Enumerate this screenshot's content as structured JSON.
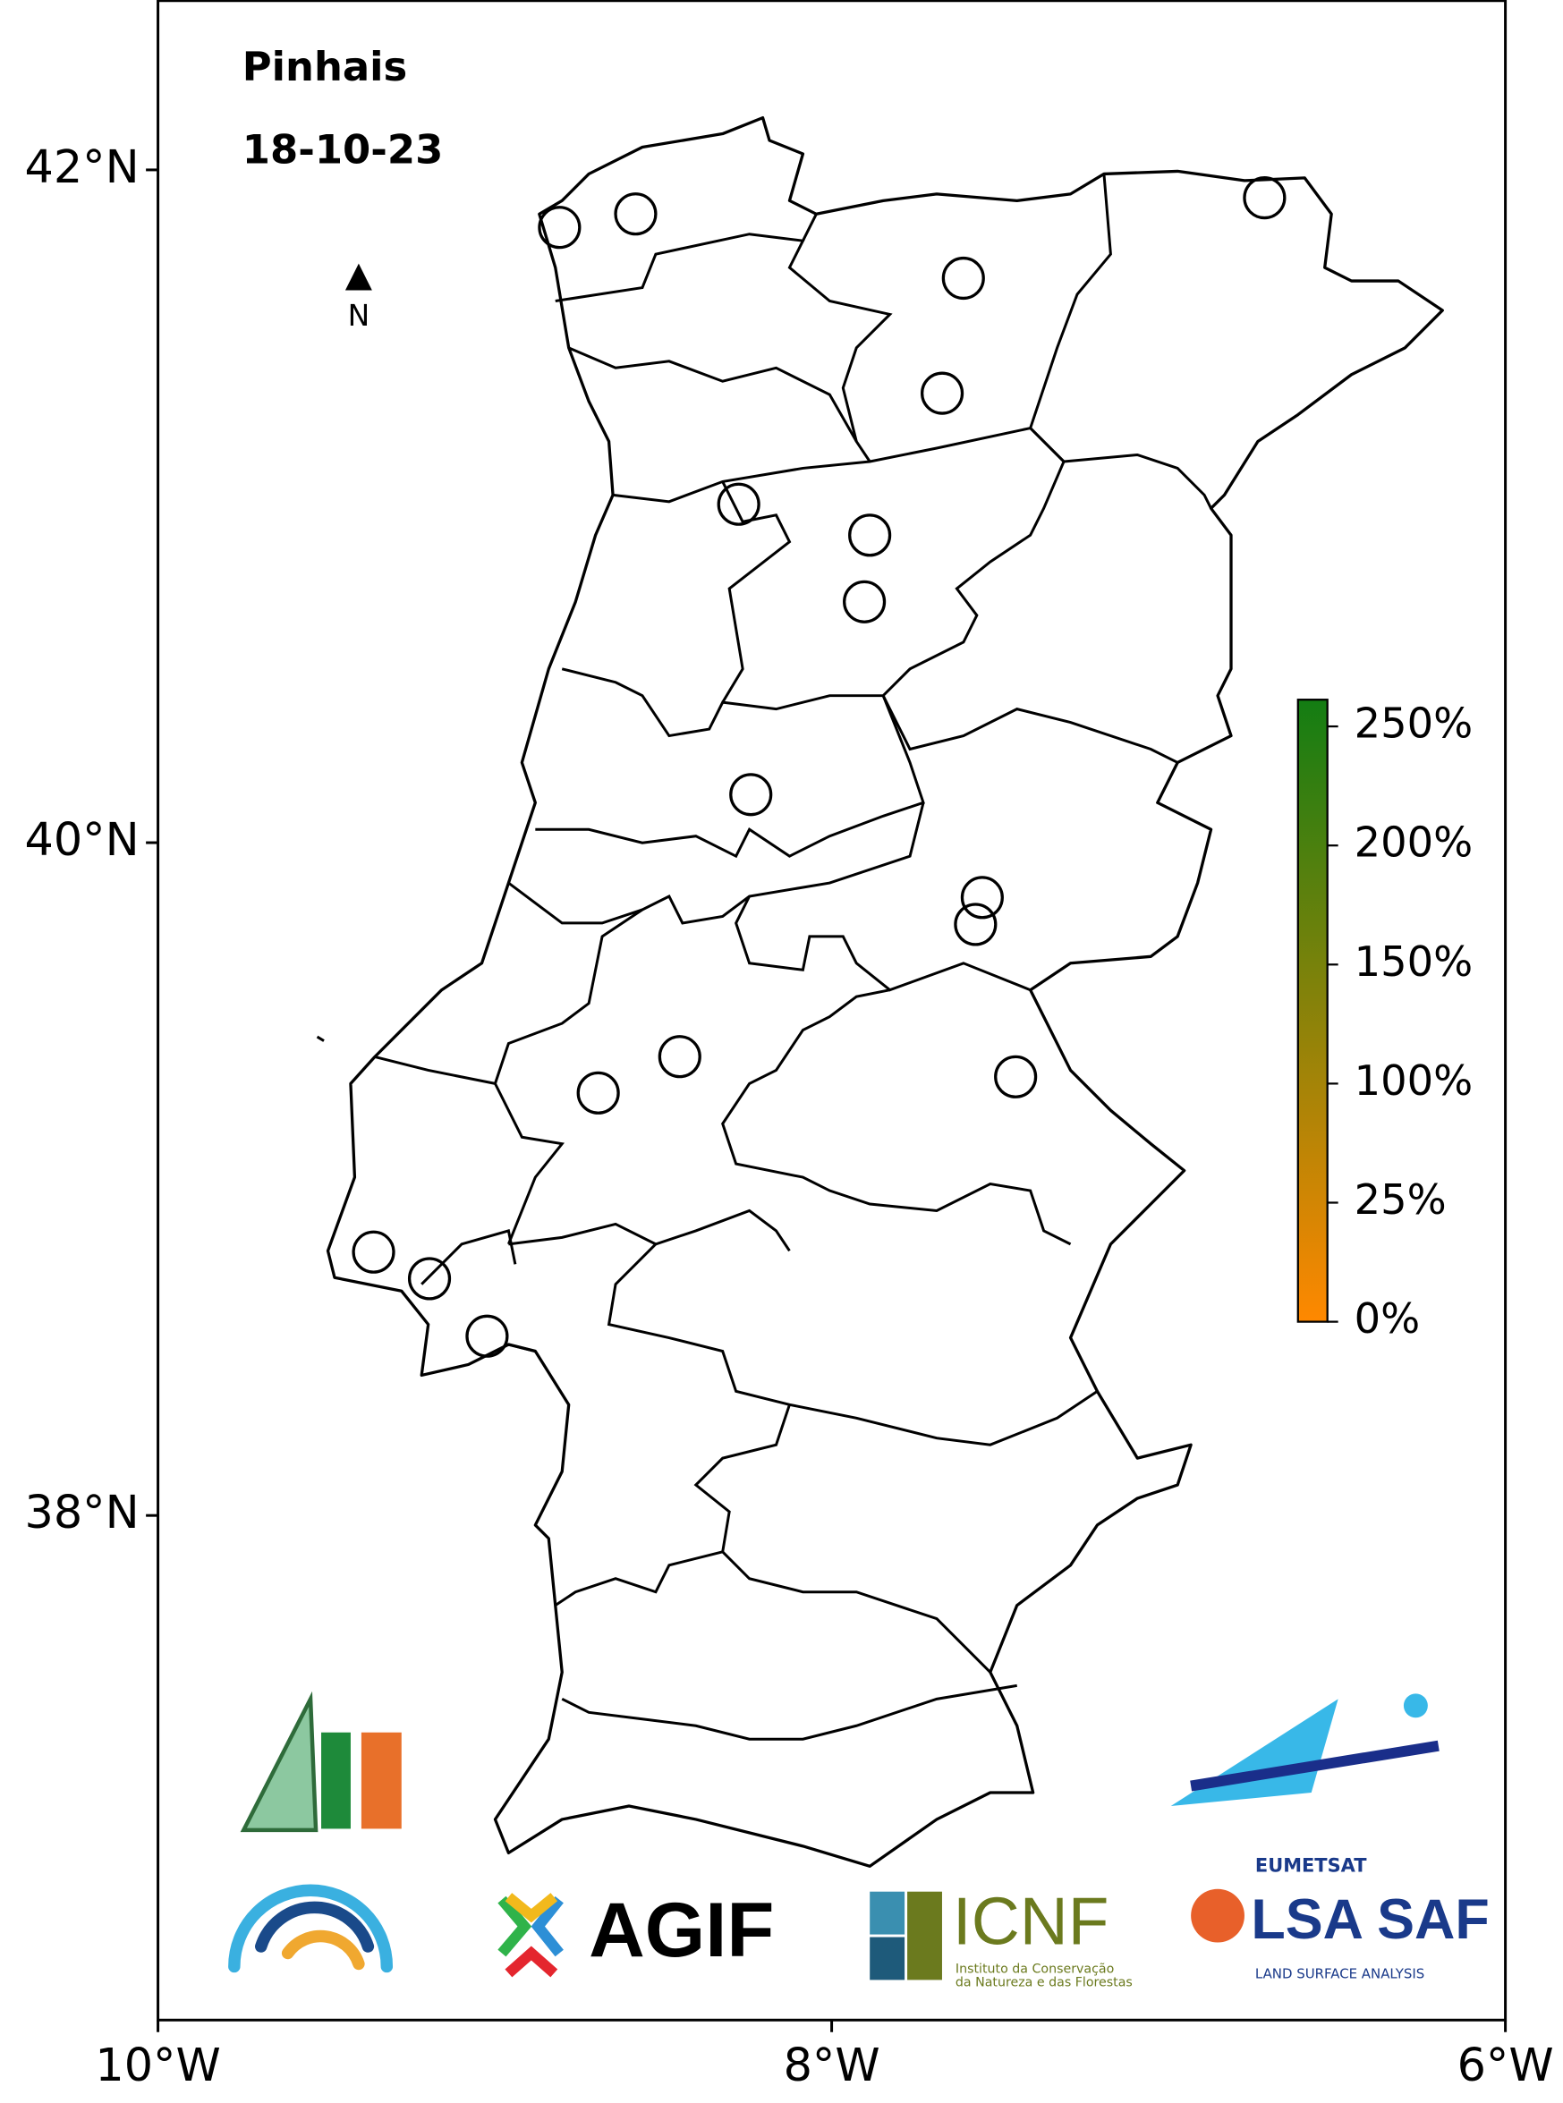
{
  "chart_data": {
    "type": "map",
    "title": "Pinhais",
    "subtitle": "18-10-23",
    "north_label": "N",
    "xlim": [
      -10,
      -6
    ],
    "ylim": [
      36.5,
      42.505
    ],
    "xticks": [
      {
        "value": -10,
        "label": "10°W"
      },
      {
        "value": -8,
        "label": "8°W"
      },
      {
        "value": -6,
        "label": "6°W"
      }
    ],
    "yticks": [
      {
        "value": 38,
        "label": "38°N"
      },
      {
        "value": 40,
        "label": "40°N"
      },
      {
        "value": 42,
        "label": "42°N"
      }
    ],
    "points": {
      "lon": [
        -8.808,
        -8.582,
        -7.609,
        -6.715,
        -7.672,
        -8.276,
        -7.887,
        -7.903,
        -8.24,
        -7.553,
        -7.573,
        -8.451,
        -8.693,
        -7.454,
        -9.36,
        -9.194,
        -9.023
      ],
      "lat": [
        41.829,
        41.869,
        41.678,
        41.917,
        41.336,
        41.006,
        40.914,
        40.716,
        40.143,
        39.837,
        39.757,
        39.364,
        39.256,
        39.304,
        38.783,
        38.704,
        38.533
      ]
    },
    "colorbar": {
      "colors": [
        "#ff8800",
        "#137d13"
      ],
      "ticks": [
        {
          "value": 0,
          "label": "0%"
        },
        {
          "value": 25,
          "label": "25%"
        },
        {
          "value": 100,
          "label": "100%"
        },
        {
          "value": 150,
          "label": "150%"
        },
        {
          "value": 200,
          "label": "200%"
        },
        {
          "value": 250,
          "label": "250%"
        }
      ]
    }
  },
  "logos": {
    "agif": "AGIF",
    "icnf": "ICNF",
    "icnf_sub": [
      "Instituto da Conservação",
      "da Natureza e das Florestas"
    ],
    "eumetsat": "EUMETSAT",
    "lsasaf": "LSA SAF",
    "lsasaf_sub": "LAND SURFACE ANALYSIS"
  }
}
